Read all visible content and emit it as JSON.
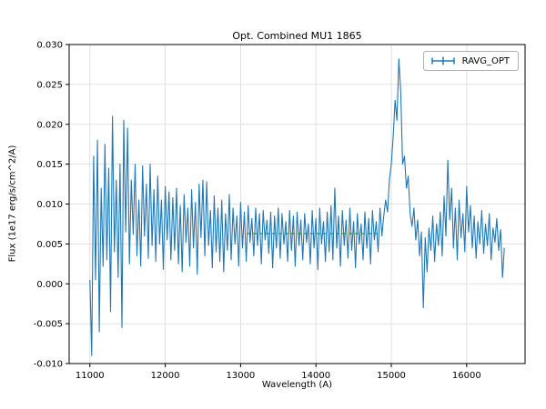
{
  "chart_data": {
    "type": "line",
    "title": "Opt. Combined MU1 1865",
    "xlabel": "Wavelength (A)",
    "ylabel": "Flux (1e17 erg/s/cm^2/A)",
    "xlim": [
      10725,
      16775
    ],
    "ylim": [
      -0.01,
      0.03
    ],
    "x_ticks": [
      11000,
      12000,
      13000,
      14000,
      15000,
      16000
    ],
    "y_ticks": [
      -0.01,
      -0.005,
      0.0,
      0.005,
      0.01,
      0.015,
      0.02,
      0.025,
      0.03
    ],
    "grid": true,
    "legend": {
      "position": "upper right",
      "entries": [
        "RAVG_OPT"
      ]
    },
    "colors": {
      "grid": "#d9d9d9",
      "axes": "#000000"
    },
    "series": [
      {
        "name": "RAVG_OPT",
        "color": "#1f77b4",
        "x_start": 11000,
        "x_step": 25,
        "values": [
          0.0005,
          -0.009,
          0.016,
          0.0005,
          0.018,
          -0.006,
          0.012,
          0.0022,
          0.0175,
          0.003,
          0.0145,
          -0.0035,
          0.021,
          0.004,
          0.013,
          0.0008,
          0.015,
          -0.0055,
          0.0205,
          0.0065,
          0.0195,
          0.0025,
          0.013,
          0.0062,
          0.015,
          0.0035,
          0.0105,
          0.0022,
          0.0148,
          0.006,
          0.0125,
          0.0032,
          0.015,
          0.0048,
          0.0118,
          0.0028,
          0.0135,
          0.005,
          0.0105,
          0.0018,
          0.0122,
          0.0055,
          0.0115,
          0.003,
          0.0108,
          0.0042,
          0.012,
          0.0025,
          0.0098,
          0.0015,
          0.0112,
          0.0052,
          0.0095,
          0.0022,
          0.0118,
          0.0045,
          0.0102,
          0.0012,
          0.0125,
          0.0058,
          0.013,
          0.0035,
          0.0128,
          0.0048,
          0.0092,
          0.002,
          0.011,
          0.004,
          0.0095,
          0.0028,
          0.0105,
          0.0015,
          0.0088,
          0.0042,
          0.0112,
          0.003,
          0.0095,
          0.005,
          0.0085,
          0.0022,
          0.0102,
          0.0045,
          0.009,
          0.0028,
          0.0098,
          0.0052,
          0.0082,
          0.0035,
          0.0095,
          0.0048,
          0.0088,
          0.0025,
          0.0092,
          0.0055,
          0.008,
          0.0038,
          0.009,
          0.002,
          0.0085,
          0.0045,
          0.0095,
          0.0032,
          0.0088,
          0.005,
          0.0078,
          0.0028,
          0.0092,
          0.0042,
          0.0085,
          0.0022,
          0.009,
          0.0048,
          0.008,
          0.003,
          0.0088,
          0.0052,
          0.0075,
          0.0025,
          0.0092,
          0.0045,
          0.0082,
          0.0018,
          0.0095,
          0.005,
          0.0078,
          0.0028,
          0.009,
          0.004,
          0.0098,
          0.003,
          0.012,
          0.0045,
          0.0085,
          0.0022,
          0.0092,
          0.0048,
          0.008,
          0.0032,
          0.0095,
          0.0042,
          0.0078,
          0.002,
          0.0088,
          0.005,
          0.0075,
          0.003,
          0.009,
          0.0045,
          0.0082,
          0.0025,
          0.0092,
          0.0055,
          0.0078,
          0.004,
          0.0095,
          0.006,
          0.0085,
          0.0105,
          0.009,
          0.013,
          0.015,
          0.0185,
          0.023,
          0.0205,
          0.0282,
          0.024,
          0.015,
          0.016,
          0.012,
          0.0135,
          0.0088,
          0.0072,
          0.0095,
          0.0055,
          0.008,
          0.0035,
          0.0065,
          -0.003,
          0.0058,
          0.0015,
          0.007,
          0.0042,
          0.0085,
          0.0028,
          0.0075,
          0.0048,
          0.009,
          0.0035,
          0.011,
          0.006,
          0.0155,
          0.008,
          0.012,
          0.0045,
          0.0095,
          0.003,
          0.0105,
          0.0058,
          0.0088,
          0.004,
          0.0122,
          0.0065,
          0.0098,
          0.0045,
          0.0085,
          0.0032,
          0.0078,
          0.005,
          0.0092,
          0.0038,
          0.0075,
          0.0048,
          0.0088,
          0.003,
          0.007,
          0.0052,
          0.0082,
          0.0042,
          0.0068,
          0.0008,
          0.0045
        ]
      }
    ],
    "overlays": [
      {
        "name": "smoothed-baseline",
        "type": "dashed-line",
        "color": "#2ca02c",
        "x_start": 13080,
        "x_end": 14830,
        "y": 0.0063
      }
    ]
  }
}
